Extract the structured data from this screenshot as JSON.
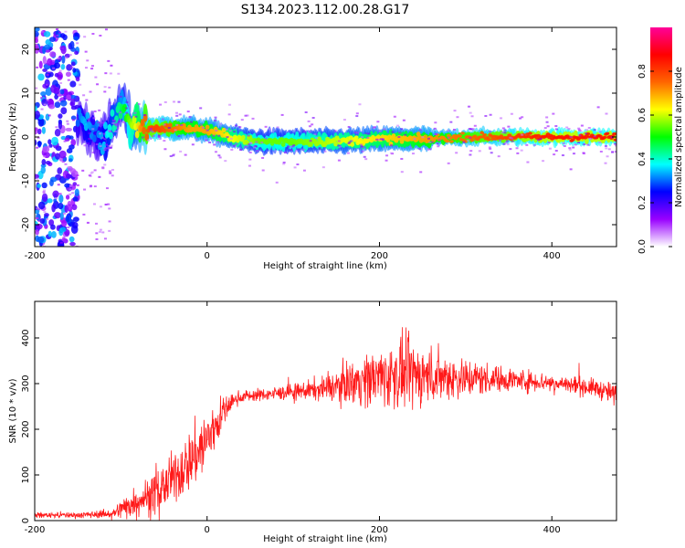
{
  "figure_title": "S134.2023.112.00.28.G17",
  "chart_data": [
    {
      "type": "heatmap",
      "xlabel": "Height of straight line (km)",
      "ylabel": "Frequency (Hz)",
      "xlim": [
        -200,
        475
      ],
      "ylim": [
        -25,
        25
      ],
      "x_ticks": [
        -200,
        0,
        200,
        400
      ],
      "y_ticks": [
        -20,
        -10,
        0,
        10,
        20
      ],
      "colorbar": {
        "label": "Normalized spectral amplitude",
        "range": [
          0,
          1
        ],
        "ticks": [
          0.0,
          0.2,
          0.4,
          0.6,
          0.8
        ],
        "colors": [
          "#ffffff",
          "#9900ff",
          "#0000ff",
          "#00ffff",
          "#00ff00",
          "#ffff00",
          "#ff6600",
          "#ff0000",
          "#ff0099"
        ]
      },
      "ridge": {
        "x": [
          -150,
          -140,
          -130,
          -120,
          -110,
          -100,
          -95,
          -90,
          -85,
          -80,
          -75,
          -60,
          -40,
          -20,
          0,
          20,
          40,
          60,
          100,
          150,
          200,
          250,
          300,
          350,
          400,
          475
        ],
        "y": [
          4,
          2,
          1,
          -1,
          3,
          7,
          6,
          3,
          2,
          3,
          2,
          2,
          2,
          2,
          1.5,
          0.5,
          -0.5,
          -1,
          -1,
          -1,
          -0.5,
          -0.5,
          0,
          0,
          0,
          0
        ],
        "intensity": [
          0.3,
          0.35,
          0.3,
          0.35,
          0.4,
          0.45,
          0.5,
          0.55,
          0.6,
          0.65,
          0.75,
          0.8,
          0.75,
          0.7,
          0.7,
          0.65,
          0.6,
          0.55,
          0.55,
          0.6,
          0.65,
          0.7,
          0.75,
          0.8,
          0.85,
          0.85
        ]
      },
      "noise_region_x": [
        -200,
        -150
      ]
    },
    {
      "type": "line",
      "xlabel": "Height of straight line (km)",
      "ylabel": "SNR (10 * v/v)",
      "xlim": [
        -200,
        475
      ],
      "ylim": [
        0,
        480
      ],
      "x_ticks": [
        -200,
        0,
        200,
        400
      ],
      "y_ticks": [
        0,
        100,
        200,
        300,
        400
      ],
      "color": "#ff0000",
      "envelope": {
        "x": [
          -200,
          -150,
          -110,
          -95,
          -80,
          -60,
          -40,
          -20,
          0,
          10,
          20,
          30,
          40,
          60,
          100,
          140,
          170,
          200,
          230,
          260,
          300,
          340,
          380,
          420,
          450,
          475
        ],
        "mean": [
          12,
          12,
          15,
          30,
          45,
          60,
          90,
          130,
          175,
          210,
          240,
          262,
          272,
          275,
          282,
          290,
          305,
          315,
          320,
          318,
          312,
          310,
          305,
          298,
          290,
          275
        ],
        "spread": [
          5,
          6,
          8,
          25,
          30,
          40,
          50,
          60,
          70,
          50,
          30,
          15,
          12,
          12,
          15,
          25,
          45,
          60,
          70,
          55,
          40,
          25,
          20,
          18,
          18,
          22
        ]
      }
    }
  ]
}
